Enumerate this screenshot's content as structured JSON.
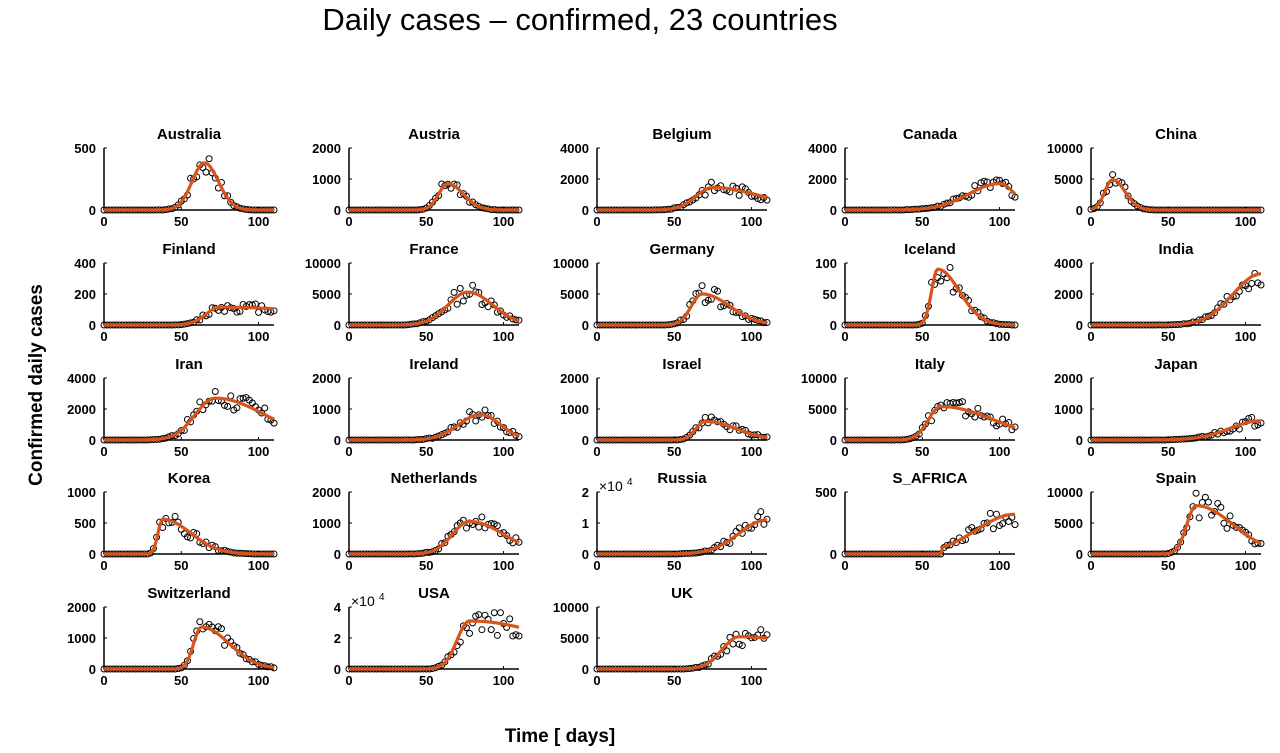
{
  "title": "Daily cases – confirmed, 23 countries",
  "xlabel": "Time [ days]",
  "ylabel": "Confirmed daily cases",
  "colors": {
    "fit": "#d9541a",
    "points": "#000000"
  },
  "chart_data": {
    "type": "scatter",
    "title": "Daily cases – confirmed, 23 countries",
    "xlabel": "Time [ days]",
    "ylabel": "Confirmed daily cases",
    "xlim": [
      0,
      110
    ],
    "xticks": [
      0,
      50,
      100
    ],
    "panels": [
      {
        "name": "Australia",
        "title": "Australia",
        "ymax": 500,
        "yticks": [
          "0",
          "500"
        ],
        "peak": [
          65,
          380
        ],
        "sig": [
          8,
          9
        ]
      },
      {
        "name": "Austria",
        "title": "Austria",
        "ymax": 2000,
        "yticks": [
          "0",
          "1000",
          "2000"
        ],
        "peak": [
          64,
          850
        ],
        "sig": [
          6,
          10
        ]
      },
      {
        "name": "Belgium",
        "title": "Belgium",
        "ymax": 4000,
        "yticks": [
          "0",
          "2000",
          "4000"
        ],
        "peak": [
          75,
          1450
        ],
        "sig": [
          11,
          32
        ]
      },
      {
        "name": "Canada",
        "title": "Canada",
        "ymax": 4000,
        "yticks": [
          "0",
          "2000",
          "4000"
        ],
        "peak": [
          100,
          1700
        ],
        "sig": [
          20,
          10
        ]
      },
      {
        "name": "China",
        "title": "China",
        "ymax": 10000,
        "yticks": [
          "0",
          "5000",
          "10000"
        ],
        "peak": [
          14,
          4900
        ],
        "sig": [
          5,
          8
        ]
      },
      {
        "name": "Finland",
        "title": "Finland",
        "ymax": 400,
        "yticks": [
          "0",
          "200",
          "400"
        ],
        "peak": [
          75,
          115
        ],
        "sig": [
          9,
          80
        ]
      },
      {
        "name": "France",
        "title": "France",
        "ymax": 10000,
        "yticks": [
          "0",
          "5000",
          "10000"
        ],
        "peak": [
          77,
          5300
        ],
        "sig": [
          13,
          16
        ]
      },
      {
        "name": "Germany",
        "title": "Germany",
        "ymax": 10000,
        "yticks": [
          "0",
          "5000",
          "10000"
        ],
        "peak": [
          68,
          5000
        ],
        "sig": [
          7,
          18
        ]
      },
      {
        "name": "Iceland",
        "title": "Iceland",
        "ymax": 100,
        "yticks": [
          "0",
          "50",
          "100"
        ],
        "peak": [
          60,
          90
        ],
        "sig": [
          4,
          14
        ]
      },
      {
        "name": "India",
        "title": "India",
        "ymax": 4000,
        "yticks": [
          "0",
          "2000",
          "4000"
        ],
        "peak": [
          110,
          3300
        ],
        "sig": [
          18,
          10
        ]
      },
      {
        "name": "Iran",
        "title": "Iran",
        "ymax": 4000,
        "yticks": [
          "0",
          "2000",
          "4000"
        ],
        "peak": [
          72,
          2700
        ],
        "sig": [
          13,
          32
        ]
      },
      {
        "name": "Ireland",
        "title": "Ireland",
        "ymax": 2000,
        "yticks": [
          "0",
          "1000",
          "2000"
        ],
        "peak": [
          85,
          820
        ],
        "sig": [
          14,
          13
        ]
      },
      {
        "name": "Israel",
        "title": "Israel",
        "ymax": 2000,
        "yticks": [
          "0",
          "1000",
          "2000"
        ],
        "peak": [
          70,
          600
        ],
        "sig": [
          6,
          20
        ]
      },
      {
        "name": "Italy",
        "title": "Italy",
        "ymax": 10000,
        "yticks": [
          "0",
          "5000",
          "10000"
        ],
        "peak": [
          62,
          5400
        ],
        "sig": [
          8,
          34
        ]
      },
      {
        "name": "Japan",
        "title": "Japan",
        "ymax": 2000,
        "yticks": [
          "0",
          "1000",
          "2000"
        ],
        "peak": [
          110,
          620
        ],
        "sig": [
          20,
          10
        ]
      },
      {
        "name": "Korea",
        "title": "Korea",
        "ymax": 1000,
        "yticks": [
          "0",
          "500",
          "1000"
        ],
        "peak": [
          38,
          560
        ],
        "sig": [
          3,
          18
        ]
      },
      {
        "name": "Netherlands",
        "title": "Netherlands",
        "ymax": 2000,
        "yticks": [
          "0",
          "1000",
          "2000"
        ],
        "peak": [
          78,
          1050
        ],
        "sig": [
          11,
          22
        ]
      },
      {
        "name": "Russia",
        "title": "Russia",
        "ymax": 20000,
        "yticks": [
          "0",
          "1",
          "2"
        ],
        "exponent": "×10",
        "exponent_power": "4",
        "peak": [
          110,
          11000
        ],
        "sig": [
          18,
          10
        ]
      },
      {
        "name": "S_AFRICA",
        "title": "S_AFRICA",
        "ymax": 500,
        "yticks": [
          "0",
          "500"
        ],
        "peak": [
          110,
          320
        ],
        "sig": [
          25,
          10
        ],
        "start": 63
      },
      {
        "name": "Spain",
        "title": "Spain",
        "ymax": 10000,
        "yticks": [
          "0",
          "5000",
          "10000"
        ],
        "peak": [
          68,
          7800
        ],
        "sig": [
          6,
          24
        ]
      },
      {
        "name": "Switzerland",
        "title": "Switzerland",
        "ymax": 2000,
        "yticks": [
          "0",
          "1000",
          "2000"
        ],
        "peak": [
          63,
          1350
        ],
        "sig": [
          5,
          18
        ]
      },
      {
        "name": "USA",
        "title": "USA",
        "ymax": 40000,
        "yticks": [
          "0",
          "2",
          "4"
        ],
        "exponent": "×10",
        "exponent_power": "4",
        "peak": [
          78,
          31000
        ],
        "sig": [
          8,
          60
        ]
      },
      {
        "name": "UK",
        "title": "UK",
        "ymax": 10000,
        "yticks": [
          "0",
          "5000",
          "10000"
        ],
        "peak": [
          92,
          5200
        ],
        "sig": [
          11,
          60
        ]
      }
    ]
  }
}
